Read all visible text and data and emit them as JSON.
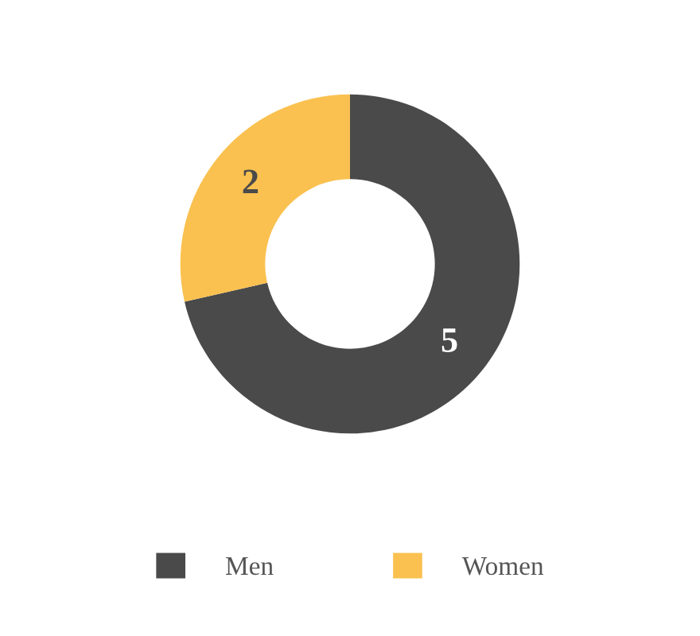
{
  "chart_data": {
    "type": "donut",
    "categories": [
      "Men",
      "Women"
    ],
    "values": [
      5,
      2
    ],
    "colors": [
      "#4a4a4a",
      "#fac150"
    ],
    "data_labels": true,
    "legend": "bottom"
  }
}
